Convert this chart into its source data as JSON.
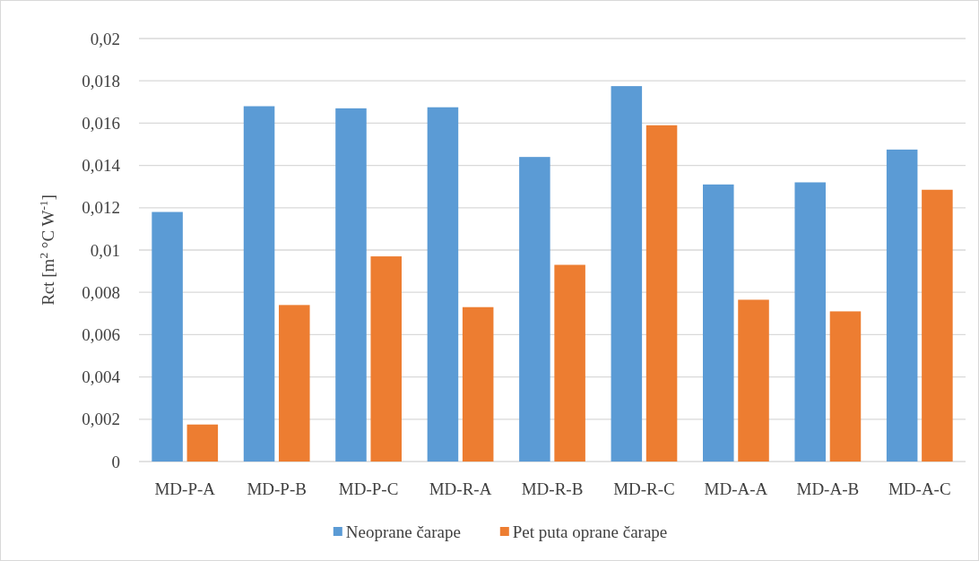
{
  "chart_data": {
    "type": "bar",
    "ylabel": "Rct [m$^{2}$ °C W$^{-1}$]",
    "categories": [
      "MD-P-A",
      "MD-P-B",
      "MD-P-C",
      "MD-R-A",
      "MD-R-B",
      "MD-R-C",
      "MD-A-A",
      "MD-A-B",
      "MD-A-C"
    ],
    "series": [
      {
        "name": "Neoprane čarape",
        "color": "#5b9bd5",
        "values": [
          0.0118,
          0.0168,
          0.0167,
          0.01675,
          0.0144,
          0.01775,
          0.0131,
          0.0132,
          0.01475
        ]
      },
      {
        "name": "Pet puta oprane čarape",
        "color": "#ed7d31",
        "values": [
          0.00175,
          0.0074,
          0.0097,
          0.0073,
          0.0093,
          0.0159,
          0.00765,
          0.0071,
          0.01285
        ]
      }
    ],
    "ylim": [
      0,
      0.02
    ],
    "yticks": [
      {
        "value": 0,
        "label": "0"
      },
      {
        "value": 0.002,
        "label": "0,002"
      },
      {
        "value": 0.004,
        "label": "0,004"
      },
      {
        "value": 0.006,
        "label": "0,006"
      },
      {
        "value": 0.008,
        "label": "0,008"
      },
      {
        "value": 0.01,
        "label": "0,01"
      },
      {
        "value": 0.012,
        "label": "0,012"
      },
      {
        "value": 0.014,
        "label": "0,014"
      },
      {
        "value": 0.016,
        "label": "0,016"
      },
      {
        "value": 0.018,
        "label": "0,018"
      },
      {
        "value": 0.02,
        "label": "0,02"
      }
    ],
    "grid": "y",
    "legend": "bottom"
  }
}
